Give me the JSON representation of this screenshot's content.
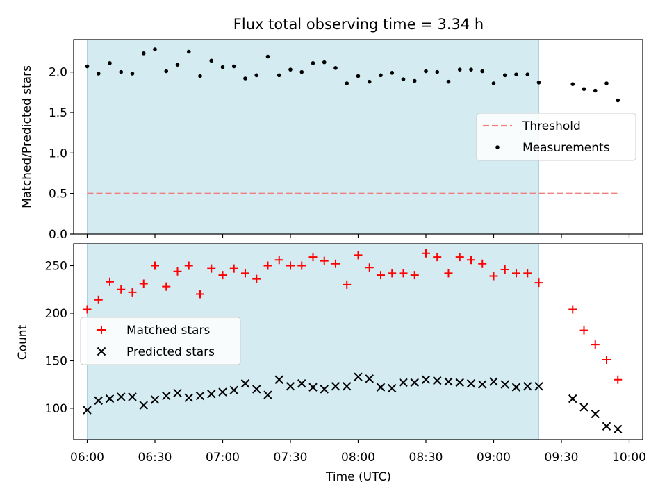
{
  "chart_data": {
    "type": "scatter",
    "title": "Flux total observing time = 3.34 h",
    "xlabel": "Time (UTC)",
    "x_tick_labels": [
      "06:00",
      "06:30",
      "07:00",
      "07:30",
      "08:00",
      "08:30",
      "09:00",
      "09:30",
      "10:00"
    ],
    "x_ticks": [
      "06:00",
      "06:30",
      "07:00",
      "07:30",
      "08:00",
      "08:30",
      "09:00",
      "09:30",
      "10:00"
    ],
    "xlim": [
      "05:54",
      "10:06"
    ],
    "shaded_interval": [
      "06:00",
      "09:20"
    ],
    "shade_color": "#d4ebf2",
    "panels": [
      {
        "ylabel": "Matched/Predicted stars",
        "ylim": [
          0,
          2.4
        ],
        "y_ticks": [
          0.0,
          0.5,
          1.0,
          1.5,
          2.0
        ],
        "y_tick_labels": [
          "0.0",
          "0.5",
          "1.0",
          "1.5",
          "2.0"
        ],
        "legend": {
          "placement": "center-right",
          "entries": [
            "Threshold",
            "Measurements"
          ]
        },
        "series": [
          {
            "name": "Threshold",
            "kind": "dashed-line",
            "color": "#f08080",
            "x": [
              "06:00",
              "09:55"
            ],
            "y": [
              0.5,
              0.5
            ]
          },
          {
            "name": "Measurements",
            "kind": "dot",
            "color": "#000000",
            "x": [
              "06:00",
              "06:05",
              "06:10",
              "06:15",
              "06:20",
              "06:25",
              "06:30",
              "06:35",
              "06:40",
              "06:45",
              "06:50",
              "06:55",
              "07:00",
              "07:05",
              "07:10",
              "07:15",
              "07:20",
              "07:25",
              "07:30",
              "07:35",
              "07:40",
              "07:45",
              "07:50",
              "07:55",
              "08:00",
              "08:05",
              "08:10",
              "08:15",
              "08:20",
              "08:25",
              "08:30",
              "08:35",
              "08:40",
              "08:45",
              "08:50",
              "08:55",
              "09:00",
              "09:05",
              "09:10",
              "09:15",
              "09:20",
              "09:35",
              "09:40",
              "09:45",
              "09:50",
              "09:55"
            ],
            "y": [
              2.07,
              1.98,
              2.11,
              2.0,
              1.98,
              2.23,
              2.28,
              2.01,
              2.09,
              2.25,
              1.95,
              2.14,
              2.06,
              2.07,
              1.92,
              1.96,
              2.19,
              1.96,
              2.03,
              2.0,
              2.11,
              2.12,
              2.05,
              1.86,
              1.95,
              1.88,
              1.96,
              1.99,
              1.91,
              1.89,
              2.01,
              2.0,
              1.88,
              2.03,
              2.03,
              2.01,
              1.86,
              1.96,
              1.97,
              1.97,
              1.87,
              1.85,
              1.79,
              1.77,
              1.86,
              1.65
            ]
          }
        ]
      },
      {
        "ylabel": "Count",
        "ylim": [
          67,
          273
        ],
        "y_ticks": [
          100,
          150,
          200,
          250
        ],
        "y_tick_labels": [
          "100",
          "150",
          "200",
          "250"
        ],
        "legend": {
          "placement": "center-left",
          "entries": [
            "Matched stars",
            "Predicted stars"
          ]
        },
        "series": [
          {
            "name": "Matched stars",
            "kind": "plus",
            "color": "#ff0000",
            "x": [
              "06:00",
              "06:05",
              "06:10",
              "06:15",
              "06:20",
              "06:25",
              "06:30",
              "06:35",
              "06:40",
              "06:45",
              "06:50",
              "06:55",
              "07:00",
              "07:05",
              "07:10",
              "07:15",
              "07:20",
              "07:25",
              "07:30",
              "07:35",
              "07:40",
              "07:45",
              "07:50",
              "07:55",
              "08:00",
              "08:05",
              "08:10",
              "08:15",
              "08:20",
              "08:25",
              "08:30",
              "08:35",
              "08:40",
              "08:45",
              "08:50",
              "08:55",
              "09:00",
              "09:05",
              "09:10",
              "09:15",
              "09:20",
              "09:35",
              "09:40",
              "09:45",
              "09:50",
              "09:55"
            ],
            "y": [
              204,
              214,
              233,
              225,
              222,
              231,
              250,
              228,
              244,
              250,
              220,
              247,
              240,
              247,
              242,
              236,
              250,
              256,
              250,
              250,
              259,
              255,
              252,
              230,
              261,
              248,
              240,
              242,
              242,
              240,
              263,
              259,
              242,
              259,
              256,
              252,
              239,
              246,
              242,
              242,
              232,
              204,
              182,
              167,
              151,
              130
            ]
          },
          {
            "name": "Predicted stars",
            "kind": "x",
            "color": "#000000",
            "x": [
              "06:00",
              "06:05",
              "06:10",
              "06:15",
              "06:20",
              "06:25",
              "06:30",
              "06:35",
              "06:40",
              "06:45",
              "06:50",
              "06:55",
              "07:00",
              "07:05",
              "07:10",
              "07:15",
              "07:20",
              "07:25",
              "07:30",
              "07:35",
              "07:40",
              "07:45",
              "07:50",
              "07:55",
              "08:00",
              "08:05",
              "08:10",
              "08:15",
              "08:20",
              "08:25",
              "08:30",
              "08:35",
              "08:40",
              "08:45",
              "08:50",
              "08:55",
              "09:00",
              "09:05",
              "09:10",
              "09:15",
              "09:20",
              "09:35",
              "09:40",
              "09:45",
              "09:50",
              "09:55"
            ],
            "y": [
              98,
              108,
              110,
              112,
              112,
              103,
              109,
              113,
              116,
              111,
              113,
              115,
              117,
              119,
              126,
              120,
              114,
              130,
              123,
              126,
              122,
              120,
              123,
              123,
              133,
              131,
              122,
              121,
              127,
              127,
              130,
              129,
              128,
              127,
              126,
              125,
              128,
              125,
              122,
              123,
              123,
              110,
              101,
              94,
              81,
              78
            ]
          }
        ]
      }
    ]
  }
}
